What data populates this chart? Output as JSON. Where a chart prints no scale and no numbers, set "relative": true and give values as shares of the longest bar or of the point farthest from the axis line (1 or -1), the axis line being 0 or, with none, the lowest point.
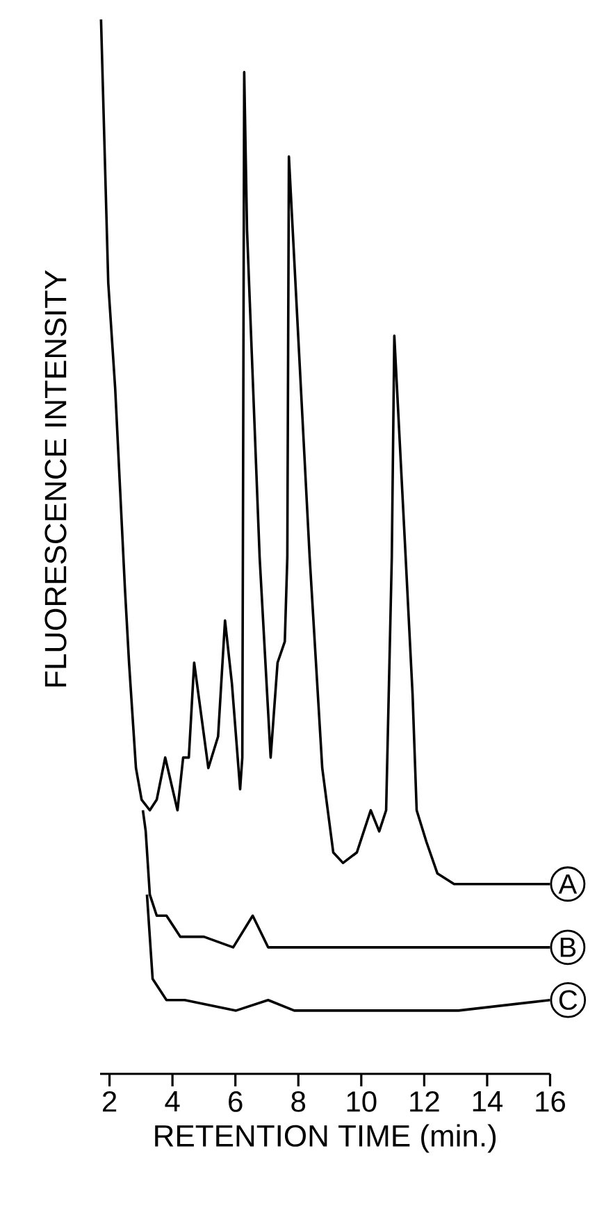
{
  "chart_data": {
    "type": "line",
    "relative": true,
    "legend": "right",
    "xlabel": "RETENTION TIME (min.)",
    "ylabel": "FLUORESCENCE INTENSITY",
    "xlim": [
      1.7,
      16
    ],
    "xticks": [
      2,
      4,
      6,
      8,
      10,
      12,
      14,
      16
    ],
    "series": [
      {
        "name": "A",
        "color": "#000000",
        "x": [
          1.73,
          1.96,
          2.18,
          2.49,
          2.62,
          2.84,
          3.02,
          3.28,
          3.5,
          3.77,
          4.16,
          4.34,
          4.52,
          4.69,
          5.14,
          5.45,
          5.67,
          5.89,
          6.15,
          6.22,
          6.28,
          6.37,
          6.77,
          7.12,
          7.34,
          7.57,
          7.65,
          7.7,
          8.36,
          8.76,
          9.11,
          9.42,
          9.86,
          10.08,
          10.3,
          10.57,
          10.79,
          10.97,
          11.05,
          11.41,
          11.63,
          11.76,
          12.07,
          12.42,
          12.95,
          13.84,
          16.0
        ],
        "values": [
          1.0,
          0.75,
          0.65,
          0.46,
          0.39,
          0.29,
          0.26,
          0.25,
          0.26,
          0.3,
          0.25,
          0.3,
          0.3,
          0.39,
          0.29,
          0.32,
          0.43,
          0.37,
          0.27,
          0.3,
          0.95,
          0.8,
          0.49,
          0.3,
          0.39,
          0.41,
          0.49,
          0.87,
          0.49,
          0.29,
          0.21,
          0.2,
          0.21,
          0.23,
          0.25,
          0.23,
          0.25,
          0.49,
          0.7,
          0.49,
          0.36,
          0.25,
          0.22,
          0.19,
          0.18,
          0.18,
          0.18
        ]
      },
      {
        "name": "B",
        "color": "#000000",
        "x": [
          3.06,
          3.15,
          3.28,
          3.5,
          3.81,
          4.25,
          5.0,
          5.93,
          6.55,
          7.04,
          9.86,
          11.19,
          13.09,
          16.0
        ],
        "values": [
          0.25,
          0.23,
          0.17,
          0.15,
          0.15,
          0.13,
          0.13,
          0.12,
          0.15,
          0.12,
          0.12,
          0.12,
          0.12,
          0.12
        ]
      },
      {
        "name": "C",
        "color": "#000000",
        "x": [
          3.19,
          3.37,
          3.81,
          4.39,
          6.02,
          7.04,
          7.87,
          10.13,
          13.09,
          16.0
        ],
        "values": [
          0.17,
          0.09,
          0.07,
          0.07,
          0.06,
          0.07,
          0.06,
          0.06,
          0.06,
          0.07
        ]
      }
    ]
  }
}
